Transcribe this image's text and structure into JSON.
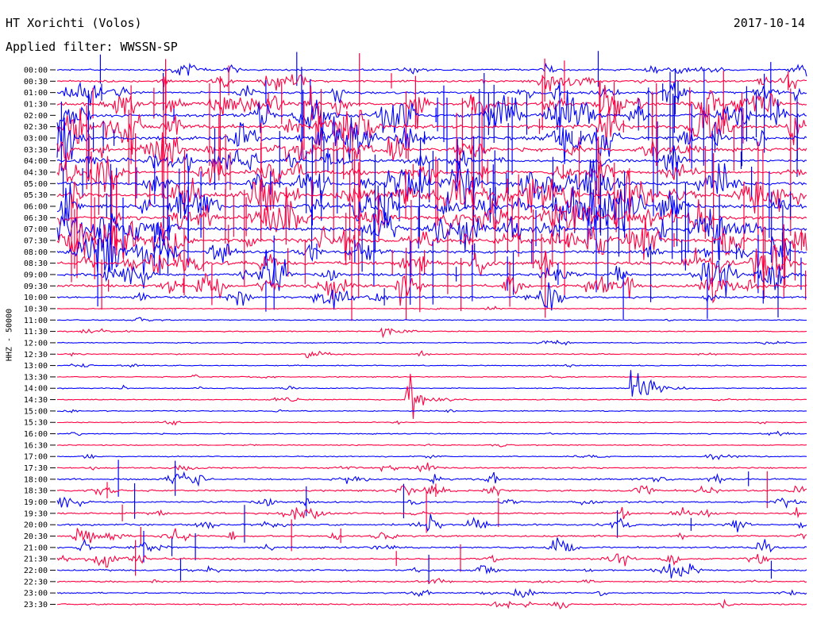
{
  "header": {
    "station": "HT Xorichti (Volos)",
    "date": "2017-10-14",
    "filter": "Applied filter: WWSSN-SP"
  },
  "chart_data": {
    "type": "line",
    "title": "HT Xorichti (Volos)",
    "subtitle": "Applied filter: WWSSN-SP",
    "ylabel": "HHZ - 50000",
    "colors": {
      "even_rows": "#0000ff",
      "odd_rows": "#ff0040"
    },
    "rows": [
      "00:00",
      "00:30",
      "01:00",
      "01:30",
      "02:00",
      "02:30",
      "03:00",
      "03:30",
      "04:00",
      "04:30",
      "05:00",
      "05:30",
      "06:00",
      "06:30",
      "07:00",
      "07:30",
      "08:00",
      "08:30",
      "09:00",
      "09:30",
      "10:00",
      "10:30",
      "11:00",
      "11:30",
      "12:00",
      "12:30",
      "13:00",
      "13:30",
      "14:00",
      "14:30",
      "15:00",
      "15:30",
      "16:00",
      "16:30",
      "17:00",
      "17:30",
      "18:00",
      "18:30",
      "19:00",
      "19:30",
      "20:00",
      "20:30",
      "21:00",
      "21:30",
      "22:00",
      "22:30",
      "23:00",
      "23:30"
    ],
    "activity": [
      3,
      4,
      5,
      7,
      8,
      8,
      8,
      7,
      6,
      6,
      8,
      9,
      9,
      8,
      8,
      8,
      7,
      7,
      6,
      6,
      4,
      1,
      1,
      1,
      1,
      1,
      1,
      1,
      1,
      1,
      1,
      1,
      1,
      1,
      1,
      2,
      3,
      3,
      3,
      3,
      3,
      3,
      3,
      3,
      3,
      2,
      2,
      2
    ],
    "events": [
      {
        "row": "12:30",
        "minute": 10,
        "amplitude": "medium"
      },
      {
        "row": "11:30",
        "minute": 13,
        "amplitude": "medium"
      },
      {
        "row": "09:30",
        "minute": 26,
        "amplitude": "large"
      },
      {
        "row": "17:00",
        "minute": 26,
        "amplitude": "small"
      },
      {
        "row": "17:30",
        "minute": 13,
        "amplitude": "small"
      },
      {
        "row": "14:30",
        "minute": 14,
        "amplitude": "large"
      },
      {
        "row": "14:00",
        "minute": 23,
        "amplitude": "large"
      }
    ]
  }
}
